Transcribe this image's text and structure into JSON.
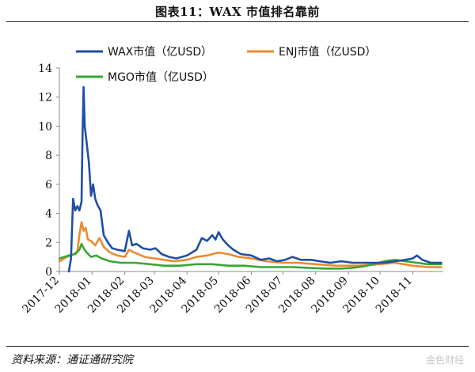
{
  "title": "图表11：WAX 市值排名靠前",
  "source": "资料来源：通证通研究院",
  "watermark": "金色财经",
  "chart_data": {
    "type": "line",
    "title": "图表11：WAX 市值排名靠前",
    "xlabel": "",
    "ylabel": "",
    "ylim": [
      0,
      14
    ],
    "yticks": [
      0,
      2,
      4,
      6,
      8,
      10,
      12,
      14
    ],
    "xlim": [
      "2017-12-01",
      "2018-11-30"
    ],
    "x_ticks": [
      "2017-12",
      "2018-01",
      "2018-02",
      "2018-03",
      "2018-04",
      "2018-05",
      "2018-06",
      "2018-07",
      "2018-08",
      "2018-09",
      "2018-10",
      "2018-11"
    ],
    "grid": false,
    "legend_position": "top",
    "series": [
      {
        "name": "WAX市值（亿USD）",
        "color": "#1f4fa3",
        "points": [
          [
            "2017-12-10",
            0
          ],
          [
            "2017-12-12",
            0.9
          ],
          [
            "2017-12-14",
            5.0
          ],
          [
            "2017-12-16",
            4.2
          ],
          [
            "2017-12-18",
            4.5
          ],
          [
            "2017-12-20",
            4.2
          ],
          [
            "2017-12-22",
            4.8
          ],
          [
            "2017-12-23",
            9.5
          ],
          [
            "2017-12-24",
            12.7
          ],
          [
            "2017-12-25",
            10.0
          ],
          [
            "2017-12-27",
            8.8
          ],
          [
            "2017-12-29",
            7.5
          ],
          [
            "2017-12-31",
            5.2
          ],
          [
            "2018-01-02",
            6.0
          ],
          [
            "2018-01-04",
            5.0
          ],
          [
            "2018-01-06",
            4.6
          ],
          [
            "2018-01-09",
            4.2
          ],
          [
            "2018-01-12",
            2.5
          ],
          [
            "2018-01-16",
            2.0
          ],
          [
            "2018-01-20",
            1.6
          ],
          [
            "2018-01-25",
            1.5
          ],
          [
            "2018-02-01",
            1.4
          ],
          [
            "2018-02-05",
            2.8
          ],
          [
            "2018-02-08",
            1.8
          ],
          [
            "2018-02-12",
            1.9
          ],
          [
            "2018-02-18",
            1.6
          ],
          [
            "2018-02-25",
            1.5
          ],
          [
            "2018-03-02",
            1.6
          ],
          [
            "2018-03-08",
            1.2
          ],
          [
            "2018-03-15",
            1.0
          ],
          [
            "2018-03-22",
            0.9
          ],
          [
            "2018-04-01",
            1.1
          ],
          [
            "2018-04-10",
            1.5
          ],
          [
            "2018-04-15",
            2.3
          ],
          [
            "2018-04-20",
            2.1
          ],
          [
            "2018-04-25",
            2.5
          ],
          [
            "2018-04-28",
            2.2
          ],
          [
            "2018-05-01",
            2.7
          ],
          [
            "2018-05-05",
            2.2
          ],
          [
            "2018-05-10",
            1.8
          ],
          [
            "2018-05-15",
            1.5
          ],
          [
            "2018-05-22",
            1.2
          ],
          [
            "2018-06-01",
            1.1
          ],
          [
            "2018-06-10",
            0.8
          ],
          [
            "2018-06-18",
            0.9
          ],
          [
            "2018-06-25",
            0.7
          ],
          [
            "2018-07-03",
            0.8
          ],
          [
            "2018-07-10",
            1.0
          ],
          [
            "2018-07-18",
            0.8
          ],
          [
            "2018-07-28",
            0.8
          ],
          [
            "2018-08-05",
            0.7
          ],
          [
            "2018-08-15",
            0.6
          ],
          [
            "2018-08-25",
            0.7
          ],
          [
            "2018-09-05",
            0.6
          ],
          [
            "2018-09-15",
            0.6
          ],
          [
            "2018-09-25",
            0.6
          ],
          [
            "2018-10-05",
            0.6
          ],
          [
            "2018-10-15",
            0.7
          ],
          [
            "2018-10-25",
            0.8
          ],
          [
            "2018-11-01",
            0.9
          ],
          [
            "2018-11-05",
            1.1
          ],
          [
            "2018-11-10",
            0.8
          ],
          [
            "2018-11-18",
            0.6
          ],
          [
            "2018-11-28",
            0.6
          ]
        ]
      },
      {
        "name": "ENJ市值（亿USD）",
        "color": "#ec8a2f",
        "points": [
          [
            "2017-12-01",
            0.7
          ],
          [
            "2017-12-08",
            1.0
          ],
          [
            "2017-12-15",
            1.2
          ],
          [
            "2017-12-18",
            1.4
          ],
          [
            "2017-12-20",
            2.5
          ],
          [
            "2017-12-22",
            3.4
          ],
          [
            "2017-12-24",
            2.8
          ],
          [
            "2017-12-26",
            3.0
          ],
          [
            "2017-12-28",
            2.2
          ],
          [
            "2017-12-31",
            2.1
          ],
          [
            "2018-01-04",
            1.8
          ],
          [
            "2018-01-08",
            2.3
          ],
          [
            "2018-01-12",
            1.7
          ],
          [
            "2018-01-18",
            1.3
          ],
          [
            "2018-01-25",
            1.1
          ],
          [
            "2018-02-01",
            1.0
          ],
          [
            "2018-02-05",
            1.5
          ],
          [
            "2018-02-10",
            1.3
          ],
          [
            "2018-02-20",
            1.0
          ],
          [
            "2018-03-01",
            0.9
          ],
          [
            "2018-03-10",
            0.8
          ],
          [
            "2018-03-20",
            0.7
          ],
          [
            "2018-04-01",
            0.8
          ],
          [
            "2018-04-10",
            1.0
          ],
          [
            "2018-04-20",
            1.1
          ],
          [
            "2018-05-01",
            1.3
          ],
          [
            "2018-05-10",
            1.2
          ],
          [
            "2018-05-20",
            1.0
          ],
          [
            "2018-06-01",
            0.9
          ],
          [
            "2018-06-15",
            0.7
          ],
          [
            "2018-07-01",
            0.6
          ],
          [
            "2018-07-15",
            0.6
          ],
          [
            "2018-08-01",
            0.5
          ],
          [
            "2018-08-20",
            0.4
          ],
          [
            "2018-09-10",
            0.4
          ],
          [
            "2018-10-01",
            0.5
          ],
          [
            "2018-10-15",
            0.6
          ],
          [
            "2018-11-01",
            0.4
          ],
          [
            "2018-11-15",
            0.3
          ],
          [
            "2018-11-28",
            0.3
          ]
        ]
      },
      {
        "name": "MGO市值（亿USD）",
        "color": "#3aa535",
        "points": [
          [
            "2017-12-01",
            0.9
          ],
          [
            "2017-12-10",
            1.1
          ],
          [
            "2017-12-16",
            1.2
          ],
          [
            "2017-12-20",
            1.5
          ],
          [
            "2017-12-22",
            1.9
          ],
          [
            "2017-12-24",
            1.6
          ],
          [
            "2017-12-27",
            1.3
          ],
          [
            "2017-12-31",
            1.0
          ],
          [
            "2018-01-05",
            1.1
          ],
          [
            "2018-01-10",
            0.9
          ],
          [
            "2018-01-18",
            0.7
          ],
          [
            "2018-01-28",
            0.6
          ],
          [
            "2018-02-10",
            0.6
          ],
          [
            "2018-02-25",
            0.5
          ],
          [
            "2018-03-10",
            0.4
          ],
          [
            "2018-03-25",
            0.4
          ],
          [
            "2018-04-10",
            0.5
          ],
          [
            "2018-04-25",
            0.5
          ],
          [
            "2018-05-10",
            0.4
          ],
          [
            "2018-05-25",
            0.4
          ],
          [
            "2018-06-10",
            0.3
          ],
          [
            "2018-06-25",
            0.3
          ],
          [
            "2018-07-10",
            0.3
          ],
          [
            "2018-07-25",
            0.25
          ],
          [
            "2018-08-10",
            0.2
          ],
          [
            "2018-08-25",
            0.2
          ],
          [
            "2018-09-05",
            0.25
          ],
          [
            "2018-09-15",
            0.35
          ],
          [
            "2018-09-25",
            0.5
          ],
          [
            "2018-10-05",
            0.7
          ],
          [
            "2018-10-15",
            0.8
          ],
          [
            "2018-10-25",
            0.7
          ],
          [
            "2018-11-05",
            0.6
          ],
          [
            "2018-11-15",
            0.5
          ],
          [
            "2018-11-28",
            0.5
          ]
        ]
      }
    ]
  }
}
